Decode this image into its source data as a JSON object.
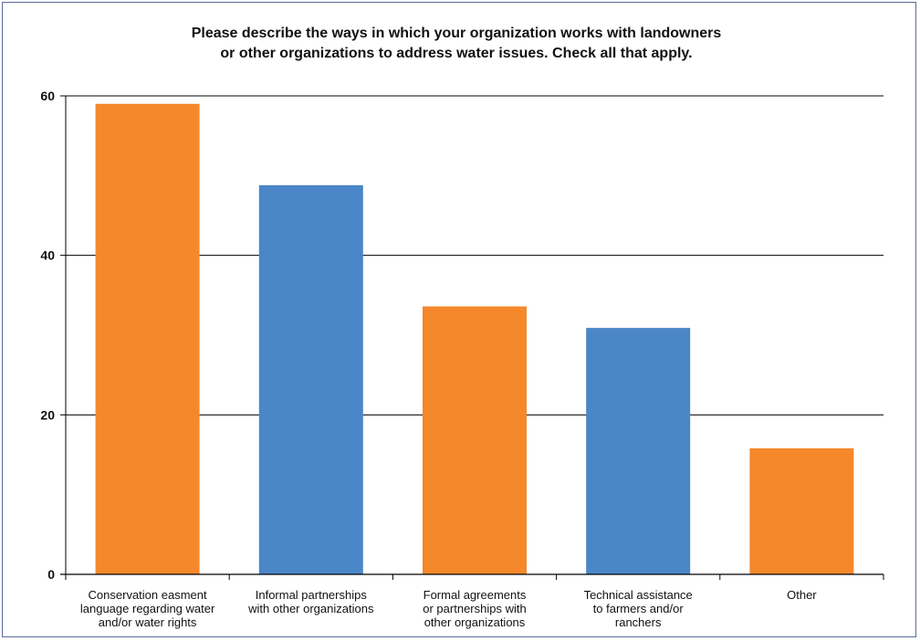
{
  "chart_data": {
    "type": "bar",
    "title": [
      "Please describe the ways in which your organization works with landowners",
      "or other organizations to address water issues. Check all that apply."
    ],
    "categories": [
      [
        "Conservation easment",
        "language regarding water",
        "and/or water rights"
      ],
      [
        "Informal partnerships",
        "with other organizations"
      ],
      [
        "Formal agreements",
        "or partnerships with",
        "other organizations"
      ],
      [
        "Technical assistance",
        "to farmers and/or",
        "ranchers"
      ],
      [
        "Other"
      ]
    ],
    "values": [
      59,
      48.8,
      33.6,
      30.9,
      15.8
    ],
    "ylim": [
      0,
      60
    ],
    "yticks": [
      "0",
      "20",
      "40",
      "60"
    ],
    "grid": true,
    "colors": [
      "#f5882a",
      "#4a86c8",
      "#f5882a",
      "#4a86c8",
      "#f5882a"
    ]
  }
}
